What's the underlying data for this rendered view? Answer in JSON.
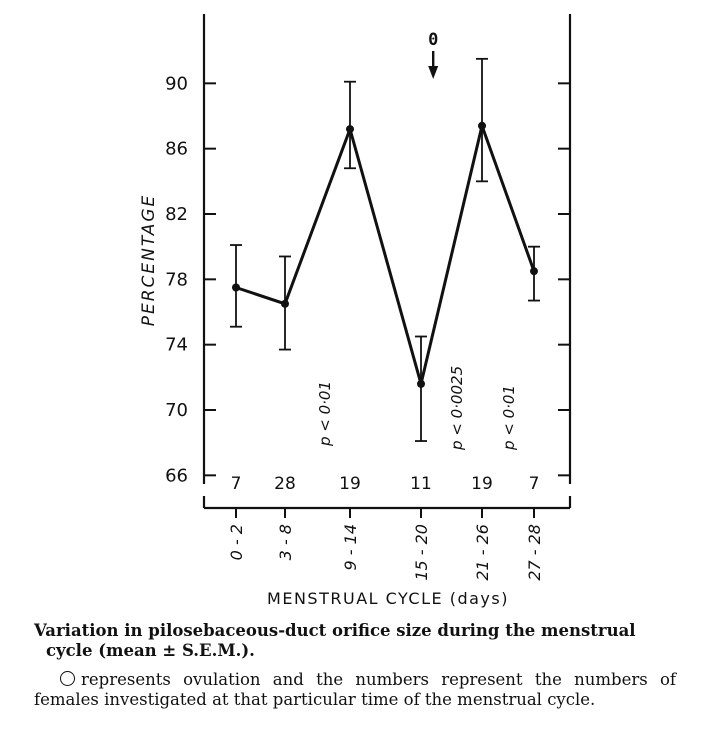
{
  "chart_data": {
    "type": "line",
    "categories": [
      "0 - 2",
      "3 - 8",
      "9 - 14",
      "15 - 20",
      "21 - 26",
      "27 - 28"
    ],
    "series": [
      {
        "values": [
          77.5,
          76.5,
          87.2,
          71.6,
          87.4,
          78.5
        ],
        "sem_low": [
          75.1,
          73.7,
          84.8,
          68.1,
          84.0,
          76.7
        ],
        "sem_high": [
          80.1,
          79.4,
          90.1,
          74.5,
          91.5,
          80.0
        ]
      }
    ],
    "counts": [
      "7",
      "28",
      "19",
      "11",
      "19",
      "7"
    ],
    "p_values": [
      {
        "category_index": 2,
        "text": "p < 0·01"
      },
      {
        "category_index": 4,
        "text": "p < 0·0025"
      },
      {
        "category_index": 5,
        "text": "p < 0·01"
      }
    ],
    "ovulation_marker": {
      "label": "0",
      "category_position": 3.2
    },
    "yticks": [
      "66",
      "70",
      "74",
      "78",
      "82",
      "86",
      "90"
    ],
    "ylim": [
      64,
      94
    ],
    "ylabel": "PERCENTAGE",
    "xlabel": "MENSTRUAL CYCLE (days)",
    "grid": false,
    "legend": "none",
    "colors": {
      "ink": "#111111",
      "background": "#ffffff"
    }
  },
  "caption": {
    "title_line1": "Variation in pilosebaceous-duct orifice size during the menstrual",
    "title_line2": "cycle (mean ± S.E.M.).",
    "body": "represents ovulation and the numbers represent the numbers of females investigated at that particular time of the menstrual cycle."
  }
}
